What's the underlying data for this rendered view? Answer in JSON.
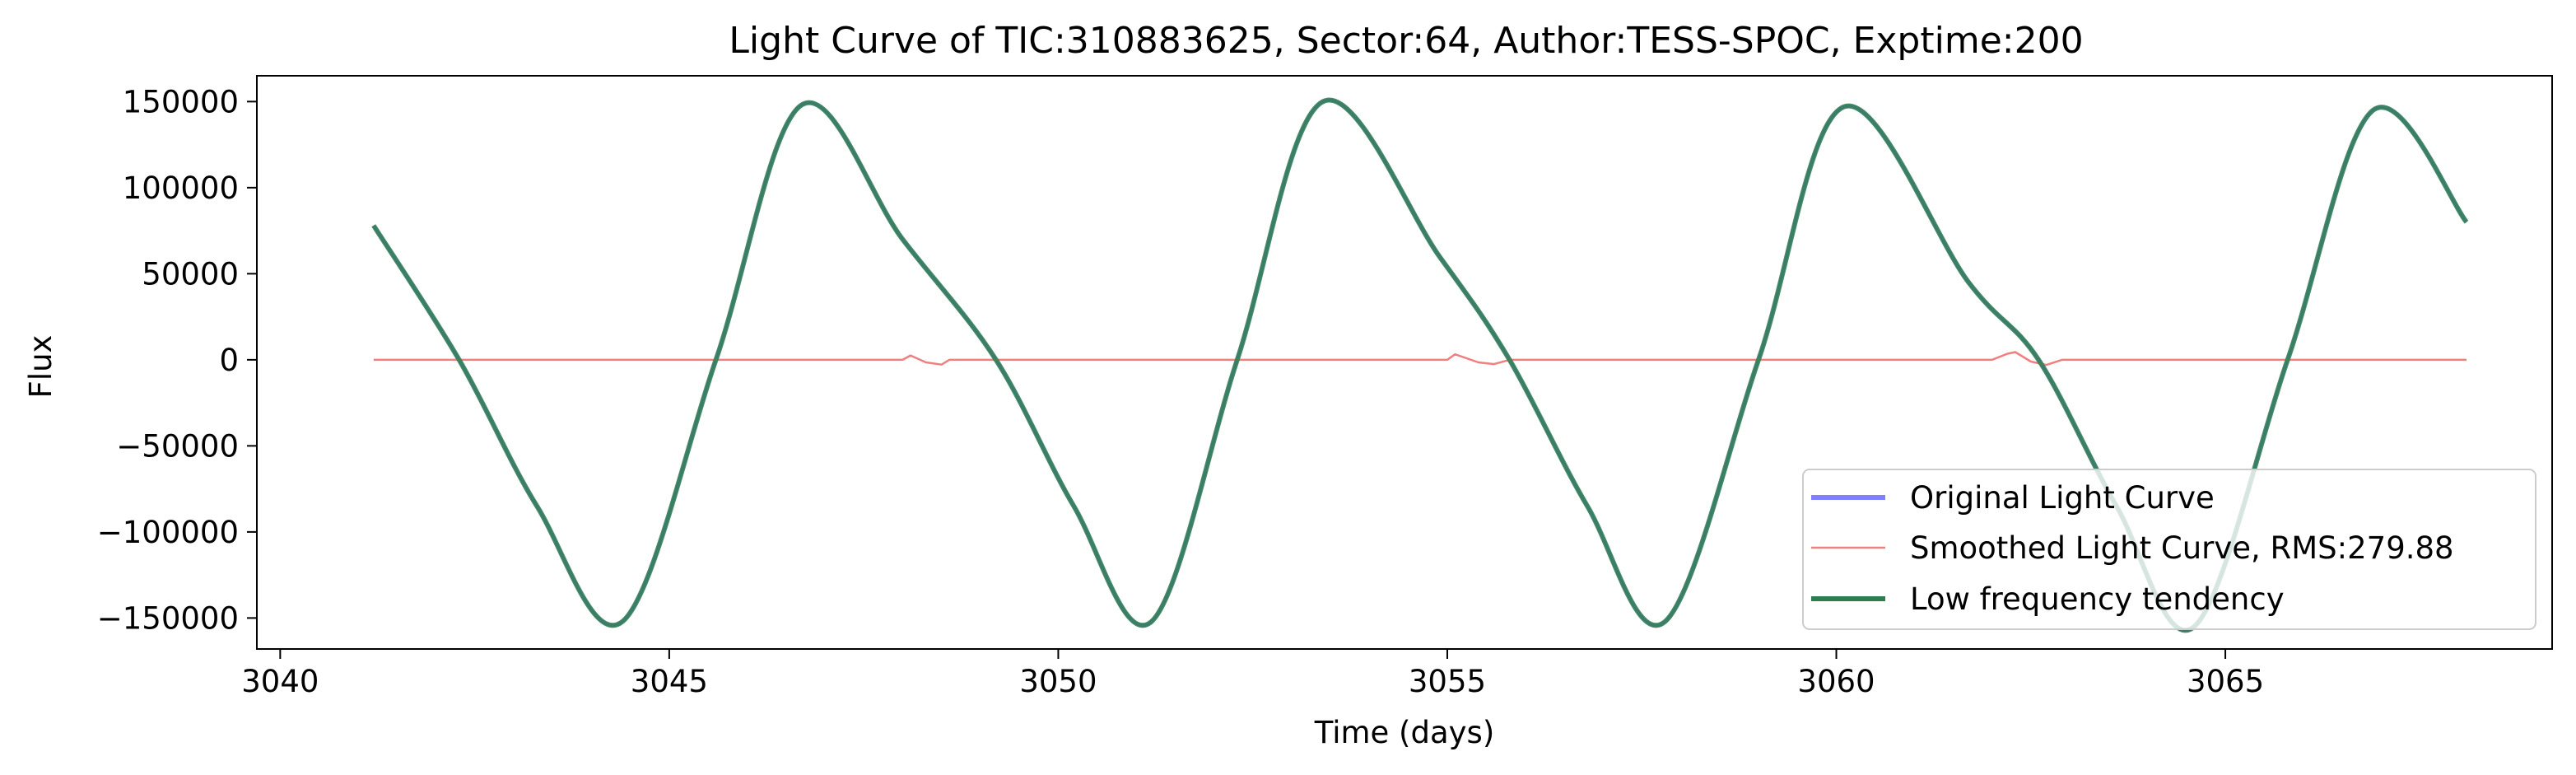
{
  "chart_data": {
    "type": "line",
    "title": "Light Curve of TIC:310883625, Sector:64, Author:TESS-SPOC, Exptime:200",
    "xlabel": "Time (days)",
    "ylabel": "Flux",
    "xlim": [
      3039.7,
      3069.2
    ],
    "ylim": [
      -168000,
      165000
    ],
    "xticks": [
      3040,
      3045,
      3050,
      3055,
      3060,
      3065
    ],
    "yticks": [
      150000,
      100000,
      50000,
      0,
      -50000,
      -100000,
      -150000
    ],
    "xtick_labels": [
      "3040",
      "3045",
      "3050",
      "3055",
      "3060",
      "3065"
    ],
    "ytick_labels": [
      "150000",
      "100000",
      "50000",
      "0",
      "−50000",
      "−100000",
      "−150000"
    ],
    "grid": false,
    "legend_position": "lower right",
    "series": [
      {
        "name": "Original Light Curve",
        "color": "#7f7fff",
        "x": [
          3041.2,
          3042.3,
          3043.3,
          3044.4,
          3045.6,
          3046.7,
          3048.0,
          3049.2,
          3050.2,
          3051.2,
          3052.3,
          3053.4,
          3054.9,
          3055.8,
          3056.8,
          3057.8,
          3059.0,
          3060.1,
          3061.7,
          3062.6,
          3063.6,
          3064.6,
          3065.8,
          3066.9,
          3068.1
        ],
        "y": [
          78000,
          0,
          -85000,
          -152000,
          0,
          148000,
          70000,
          0,
          -85000,
          -152000,
          0,
          150000,
          60000,
          0,
          -85000,
          -152000,
          0,
          147000,
          45000,
          0,
          -85000,
          -155000,
          0,
          145000,
          80000
        ]
      },
      {
        "name": "Smoothed Light Curve, RMS:279.88",
        "color": "#f08080",
        "x": [
          3041.2,
          3043.0,
          3045.0,
          3047.0,
          3048.0,
          3048.1,
          3048.3,
          3048.5,
          3048.6,
          3050.0,
          3052.0,
          3054.0,
          3055.0,
          3055.1,
          3055.4,
          3055.6,
          3055.8,
          3058.0,
          3060.0,
          3062.0,
          3062.2,
          3062.3,
          3062.5,
          3062.7,
          3062.9,
          3065.0,
          3067.0,
          3068.1
        ],
        "y": [
          0,
          0,
          0,
          0,
          0,
          2500,
          -1500,
          -2800,
          0,
          0,
          0,
          0,
          0,
          3200,
          -1500,
          -2500,
          0,
          0,
          0,
          0,
          3500,
          4500,
          -1000,
          -3000,
          0,
          0,
          0,
          0
        ]
      },
      {
        "name": "Low frequency tendency",
        "color": "#2e7d4f",
        "x": [
          3041.2,
          3042.3,
          3043.3,
          3044.4,
          3045.6,
          3046.7,
          3048.0,
          3049.2,
          3050.2,
          3051.2,
          3052.3,
          3053.4,
          3054.9,
          3055.8,
          3056.8,
          3057.8,
          3059.0,
          3060.1,
          3061.7,
          3062.6,
          3063.6,
          3064.6,
          3065.8,
          3066.9,
          3068.1
        ],
        "y": [
          78000,
          0,
          -85000,
          -152000,
          0,
          148000,
          70000,
          0,
          -85000,
          -152000,
          0,
          150000,
          60000,
          0,
          -85000,
          -152000,
          0,
          147000,
          45000,
          0,
          -85000,
          -155000,
          0,
          145000,
          80000
        ]
      }
    ]
  }
}
